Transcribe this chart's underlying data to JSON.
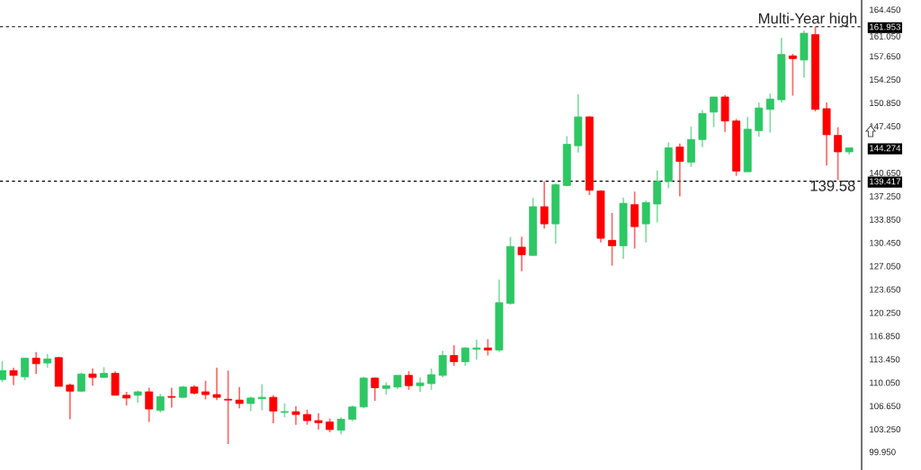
{
  "chart_data": {
    "type": "candlestick",
    "categories": [
      null,
      null,
      null,
      null,
      null,
      null,
      null,
      null,
      null,
      null,
      null,
      null,
      null,
      null,
      null,
      null,
      null,
      null,
      null,
      null,
      null,
      null,
      null,
      null,
      null,
      null,
      null,
      null,
      null,
      null,
      null,
      null,
      null,
      null,
      null,
      null,
      null,
      null,
      null,
      null,
      null,
      null,
      null,
      null,
      null,
      null,
      null,
      null,
      null,
      null,
      null,
      null,
      null,
      null,
      null,
      null,
      null,
      null,
      null,
      null,
      null,
      null,
      null,
      null,
      null,
      null,
      null,
      null,
      null,
      null,
      null,
      null,
      null,
      null,
      null,
      null
    ],
    "ohlc": [
      [
        110.5,
        113.2,
        110.1,
        111.8
      ],
      [
        111.8,
        112.2,
        109.7,
        111.1
      ],
      [
        110.9,
        113.6,
        110.4,
        113.6
      ],
      [
        113.6,
        114.5,
        111.3,
        112.8
      ],
      [
        112.9,
        114.2,
        112.2,
        113.5
      ],
      [
        113.7,
        113.8,
        109.5,
        109.5
      ],
      [
        109.7,
        109.9,
        104.7,
        108.8
      ],
      [
        108.8,
        111.5,
        108.7,
        111.3
      ],
      [
        111.3,
        112.1,
        109.6,
        110.8
      ],
      [
        110.8,
        112.3,
        110.8,
        111.4
      ],
      [
        111.4,
        111.7,
        108.2,
        108.2
      ],
      [
        108.2,
        108.7,
        106.7,
        107.8
      ],
      [
        108.2,
        108.9,
        107.1,
        108.7
      ],
      [
        108.7,
        109.3,
        104.3,
        106.2
      ],
      [
        106.0,
        108.4,
        105.7,
        108.0
      ],
      [
        108.0,
        109.3,
        106.4,
        107.9
      ],
      [
        107.9,
        109.6,
        107.8,
        109.4
      ],
      [
        109.4,
        109.7,
        108.3,
        108.5
      ],
      [
        108.7,
        110.3,
        107.6,
        108.3
      ],
      [
        108.3,
        112.2,
        107.5,
        107.9
      ],
      [
        107.6,
        111.8,
        101.1,
        107.5
      ],
      [
        107.5,
        109.4,
        106.3,
        107.0
      ],
      [
        107.0,
        108.0,
        105.9,
        107.8
      ],
      [
        107.7,
        109.8,
        106.0,
        107.9
      ],
      [
        107.9,
        108.2,
        104.1,
        105.9
      ],
      [
        105.7,
        107.0,
        105.0,
        105.8
      ],
      [
        105.8,
        106.6,
        103.9,
        105.4
      ],
      [
        105.4,
        106.1,
        103.9,
        104.5
      ],
      [
        104.5,
        105.6,
        103.2,
        104.2
      ],
      [
        104.3,
        104.8,
        102.8,
        103.2
      ],
      [
        103.1,
        105.0,
        102.5,
        104.7
      ],
      [
        104.7,
        106.7,
        104.4,
        106.5
      ],
      [
        106.5,
        110.9,
        106.3,
        110.7
      ],
      [
        110.7,
        110.8,
        107.4,
        109.3
      ],
      [
        109.2,
        110.1,
        108.3,
        109.6
      ],
      [
        109.4,
        111.1,
        109.1,
        111.1
      ],
      [
        111.1,
        111.7,
        109.0,
        109.6
      ],
      [
        109.6,
        110.8,
        108.7,
        110.0
      ],
      [
        109.9,
        112.1,
        109.0,
        111.2
      ],
      [
        111.1,
        114.7,
        110.8,
        114.0
      ],
      [
        114.0,
        115.5,
        112.5,
        113.1
      ],
      [
        113.1,
        115.2,
        112.5,
        115.1
      ],
      [
        114.9,
        116.3,
        113.4,
        115.1
      ],
      [
        115.1,
        116.4,
        114.0,
        114.8
      ],
      [
        114.8,
        125.1,
        114.5,
        121.7
      ],
      [
        121.6,
        131.3,
        121.4,
        129.9
      ],
      [
        129.8,
        131.3,
        126.3,
        128.7
      ],
      [
        128.6,
        137.0,
        128.6,
        135.7
      ],
      [
        135.7,
        139.4,
        132.5,
        133.2
      ],
      [
        133.2,
        139.1,
        130.3,
        138.9
      ],
      [
        138.8,
        146.0,
        138.7,
        144.8
      ],
      [
        144.6,
        152.1,
        143.6,
        148.8
      ],
      [
        148.8,
        148.9,
        137.4,
        138.1
      ],
      [
        138.0,
        138.1,
        130.5,
        131.1
      ],
      [
        130.8,
        134.8,
        127.1,
        130.0
      ],
      [
        130.0,
        137.0,
        128.1,
        136.2
      ],
      [
        136.0,
        137.9,
        129.6,
        132.8
      ],
      [
        133.2,
        136.6,
        130.5,
        136.3
      ],
      [
        136.1,
        141.0,
        133.4,
        139.4
      ],
      [
        139.4,
        145.1,
        138.4,
        144.3
      ],
      [
        144.4,
        144.9,
        137.2,
        142.3
      ],
      [
        142.2,
        147.4,
        141.5,
        145.5
      ],
      [
        145.5,
        149.8,
        144.4,
        149.3
      ],
      [
        149.5,
        151.7,
        147.3,
        151.7
      ],
      [
        151.7,
        152.0,
        146.6,
        148.2
      ],
      [
        148.2,
        148.5,
        140.2,
        140.9
      ],
      [
        140.8,
        148.8,
        140.8,
        147.0
      ],
      [
        146.8,
        150.9,
        145.9,
        150.1
      ],
      [
        149.9,
        152.2,
        146.5,
        151.4
      ],
      [
        151.3,
        160.3,
        150.9,
        157.9
      ],
      [
        157.7,
        158.0,
        151.9,
        157.3
      ],
      [
        157.1,
        161.4,
        154.5,
        161.0
      ],
      [
        160.8,
        161.953,
        149.6,
        149.9
      ],
      [
        150.0,
        150.9,
        141.7,
        146.2
      ],
      [
        146.1,
        147.3,
        139.58,
        143.7
      ],
      [
        143.7,
        144.3,
        143.3,
        144.274
      ]
    ],
    "colors": [
      "#2dc764",
      "#ff0000",
      "#2dc764",
      "#ff0000",
      "#2dc764",
      "#ff0000",
      "#ff0000",
      "#2dc764",
      "#ff0000",
      "#2dc764",
      "#ff0000",
      "#ff0000",
      "#2dc764",
      "#ff0000",
      "#2dc764",
      "#ff0000",
      "#2dc764",
      "#ff0000",
      "#ff0000",
      "#ff0000",
      "#ff0000",
      "#ff0000",
      "#2dc764",
      "#2dc764",
      "#ff0000",
      "#2dc764",
      "#ff0000",
      "#ff0000",
      "#ff0000",
      "#ff0000",
      "#2dc764",
      "#2dc764",
      "#2dc764",
      "#ff0000",
      "#2dc764",
      "#2dc764",
      "#ff0000",
      "#2dc764",
      "#2dc764",
      "#2dc764",
      "#ff0000",
      "#2dc764",
      "#2dc764",
      "#ff0000",
      "#2dc764",
      "#2dc764",
      "#ff0000",
      "#2dc764",
      "#ff0000",
      "#2dc764",
      "#2dc764",
      "#2dc764",
      "#ff0000",
      "#ff0000",
      "#ff0000",
      "#2dc764",
      "#ff0000",
      "#2dc764",
      "#2dc764",
      "#2dc764",
      "#ff0000",
      "#2dc764",
      "#2dc764",
      "#2dc764",
      "#ff0000",
      "#ff0000",
      "#2dc764",
      "#2dc764",
      "#2dc764",
      "#2dc764",
      "#ff0000",
      "#2dc764",
      "#ff0000",
      "#ff0000",
      "#ff0000",
      "#2dc764"
    ],
    "ylim": [
      97.3,
      165.85
    ],
    "yticks": [
      "99.950",
      "103.250",
      "106.650",
      "110.050",
      "113.450",
      "116.850",
      "120.250",
      "123.650",
      "127.050",
      "130.450",
      "133.850",
      "137.250",
      {
        "value": 139.417,
        "label": "139.417"
      },
      "140.650",
      {
        "value": 144.274,
        "label": "144.274"
      },
      "147.450",
      "150.850",
      "154.250",
      "157.650",
      "161.050",
      {
        "value": 161.953,
        "label": "161.953"
      },
      "164.450"
    ],
    "tick_labels": "y",
    "grid": false,
    "ref_lines": [
      {
        "axis": "y",
        "value": 161.953,
        "label": "Multi-Year high",
        "color": "#000000",
        "line_style": "dashed"
      },
      {
        "axis": "y",
        "value": 139.417,
        "label": null,
        "color": "#000000",
        "line_style": "dashed"
      }
    ],
    "annotations": [
      {
        "text": "139.58",
        "y": 139.58
      }
    ]
  }
}
